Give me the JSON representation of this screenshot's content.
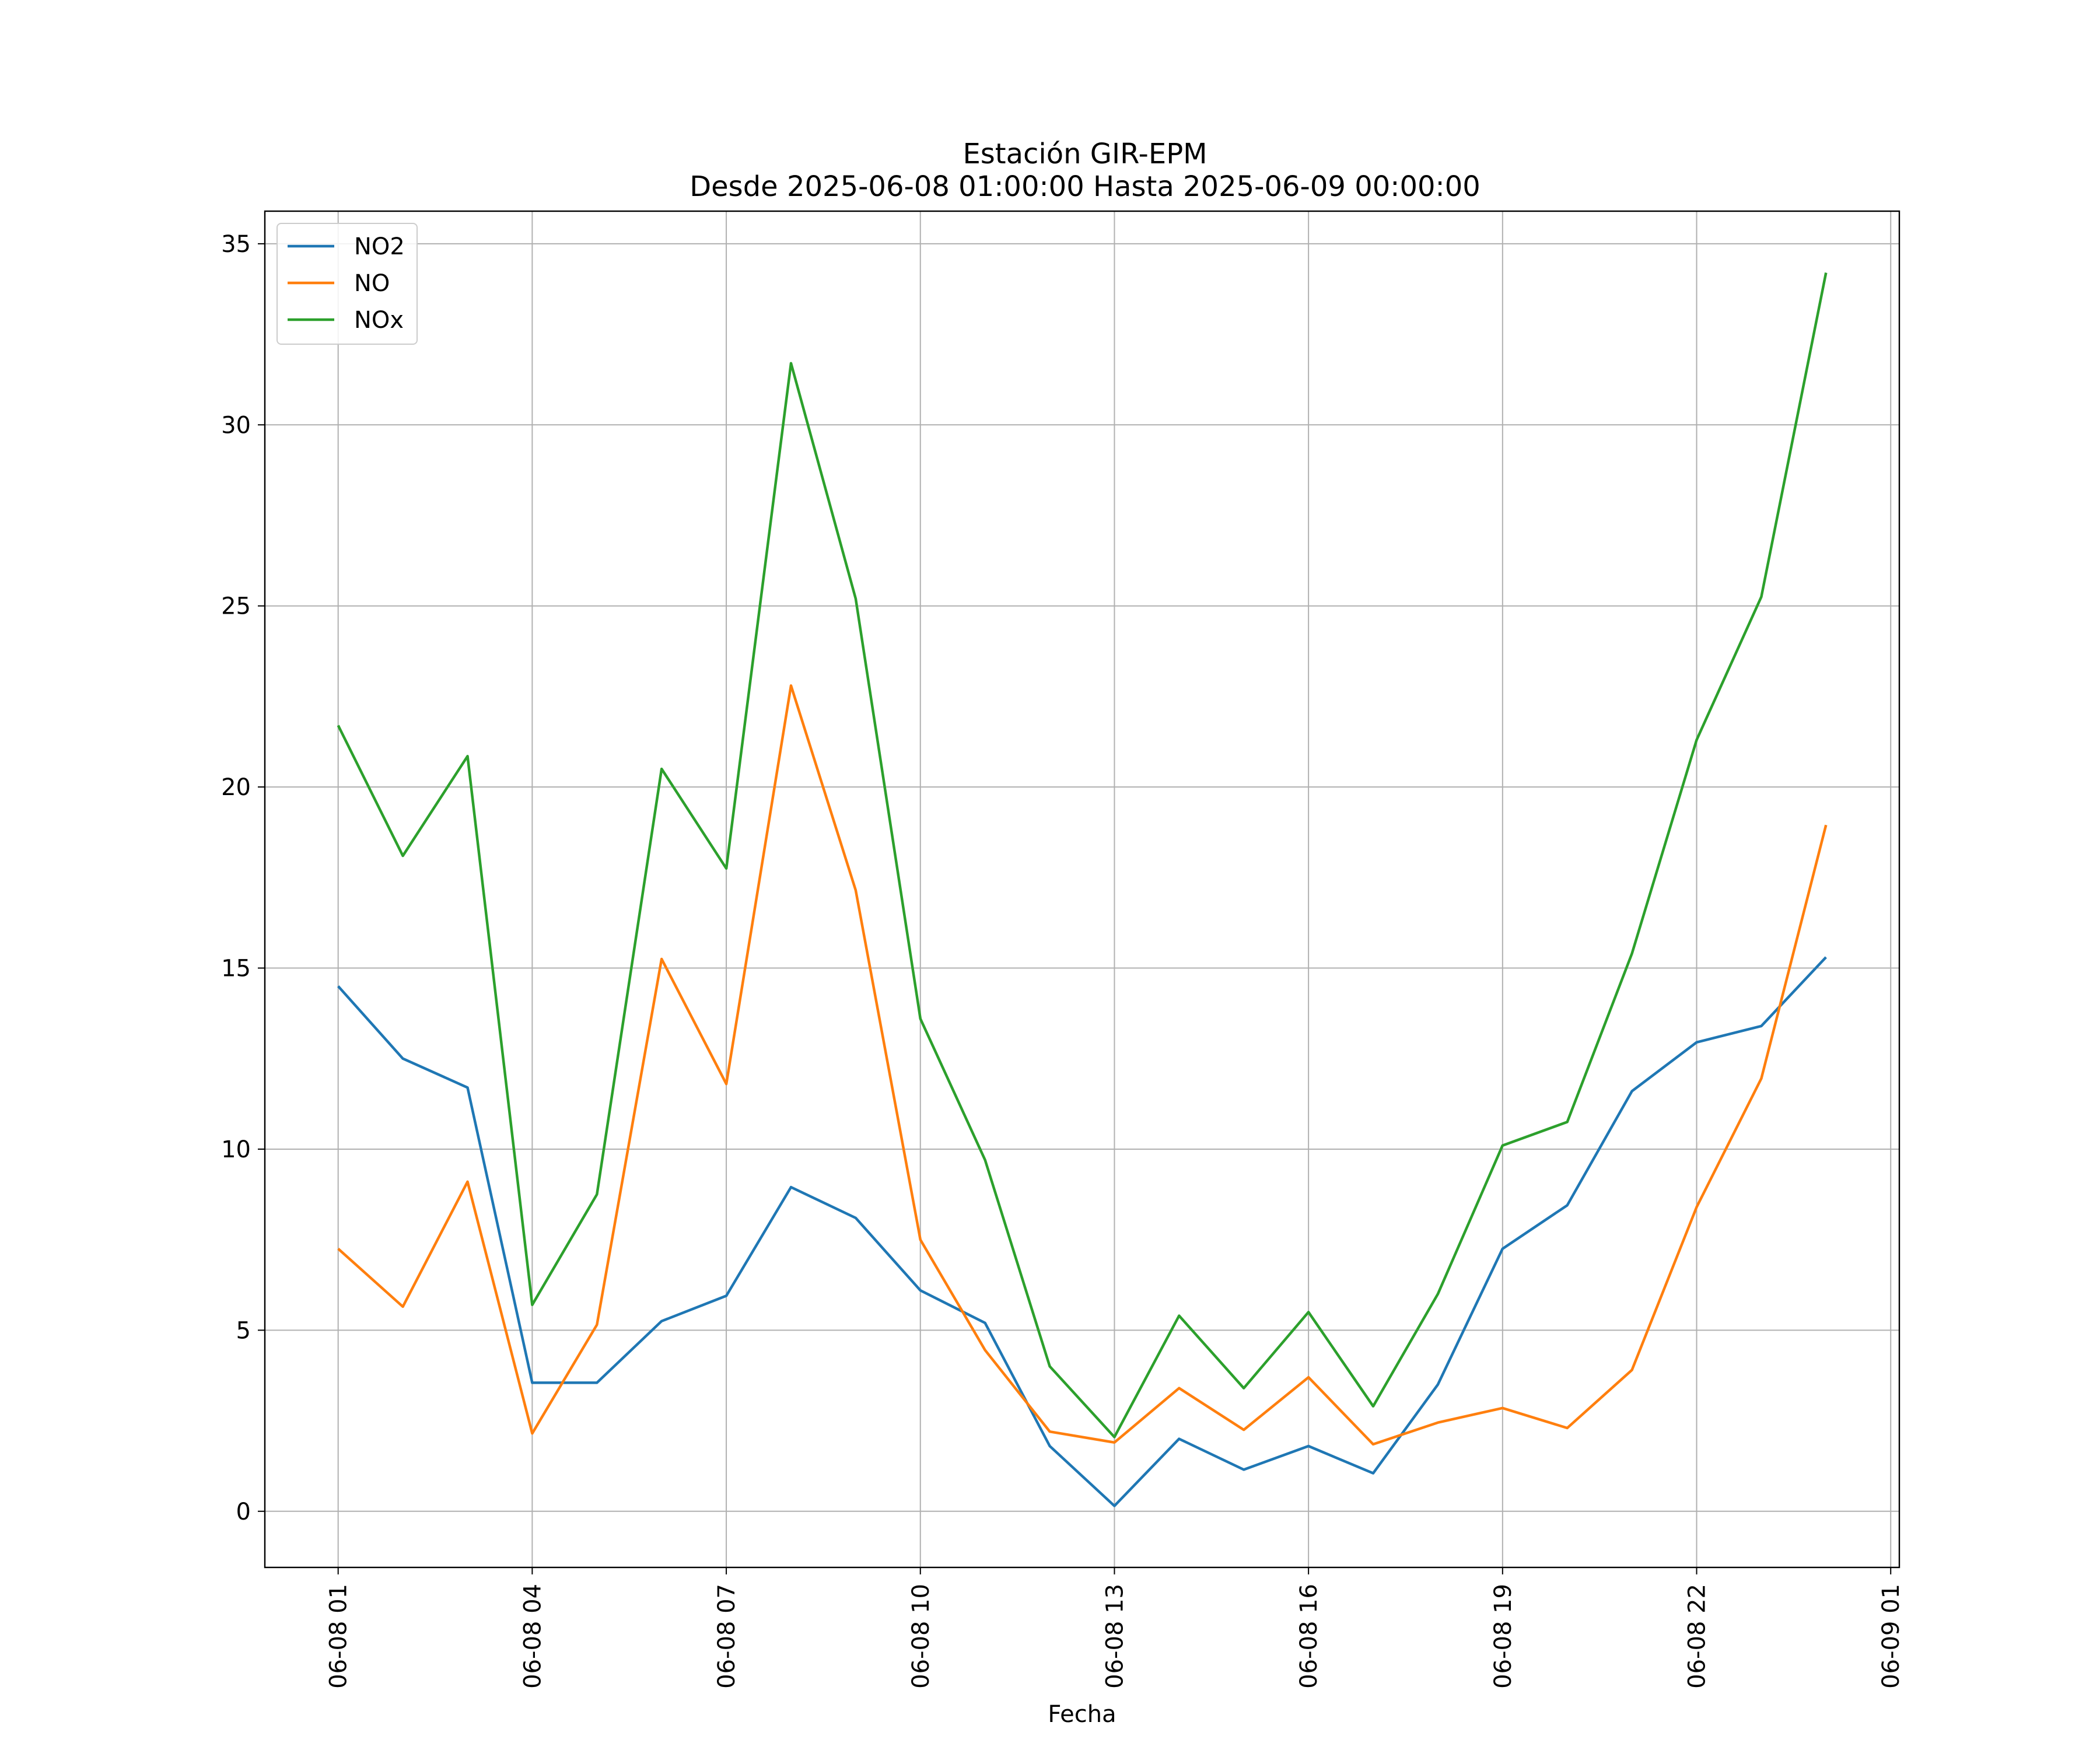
{
  "chart_data": {
    "type": "line",
    "title": "Estación GIR-EPM",
    "subtitle": "Desde 2025-06-08 01:00:00 Hasta 2025-06-09 00:00:00",
    "xlabel": "Fecha",
    "ylabel": "",
    "x": [
      "2025-06-08 01:00",
      "2025-06-08 02:00",
      "2025-06-08 03:00",
      "2025-06-08 04:00",
      "2025-06-08 05:00",
      "2025-06-08 06:00",
      "2025-06-08 07:00",
      "2025-06-08 08:00",
      "2025-06-08 09:00",
      "2025-06-08 10:00",
      "2025-06-08 11:00",
      "2025-06-08 12:00",
      "2025-06-08 13:00",
      "2025-06-08 14:00",
      "2025-06-08 15:00",
      "2025-06-08 16:00",
      "2025-06-08 17:00",
      "2025-06-08 18:00",
      "2025-06-08 19:00",
      "2025-06-08 20:00",
      "2025-06-08 21:00",
      "2025-06-08 22:00",
      "2025-06-08 23:00",
      "2025-06-09 00:00"
    ],
    "xlim": [
      "2025-06-07 23:52",
      "2025-06-09 01:08"
    ],
    "ylim": [
      -1.55,
      35.9
    ],
    "xticks": [
      {
        "value": "2025-06-08 01:00",
        "label": "06-08 01"
      },
      {
        "value": "2025-06-08 04:00",
        "label": "06-08 04"
      },
      {
        "value": "2025-06-08 07:00",
        "label": "06-08 07"
      },
      {
        "value": "2025-06-08 10:00",
        "label": "06-08 10"
      },
      {
        "value": "2025-06-08 13:00",
        "label": "06-08 13"
      },
      {
        "value": "2025-06-08 16:00",
        "label": "06-08 16"
      },
      {
        "value": "2025-06-08 19:00",
        "label": "06-08 19"
      },
      {
        "value": "2025-06-08 22:00",
        "label": "06-08 22"
      },
      {
        "value": "2025-06-09 01:00",
        "label": "06-09 01"
      }
    ],
    "yticks": [
      {
        "value": 0,
        "label": "0"
      },
      {
        "value": 5,
        "label": "5"
      },
      {
        "value": 10,
        "label": "10"
      },
      {
        "value": 15,
        "label": "15"
      },
      {
        "value": 20,
        "label": "20"
      },
      {
        "value": 25,
        "label": "25"
      },
      {
        "value": 30,
        "label": "30"
      },
      {
        "value": 35,
        "label": "35"
      }
    ],
    "grid": true,
    "legend_position": "upper-left",
    "series": [
      {
        "name": "NO2",
        "color": "#1f77b4",
        "values": [
          14.5,
          12.5,
          11.7,
          3.55,
          3.55,
          5.25,
          5.95,
          8.95,
          8.1,
          6.1,
          5.2,
          1.8,
          0.15,
          2.0,
          1.15,
          1.8,
          1.05,
          3.5,
          7.25,
          8.45,
          11.6,
          12.95,
          13.4,
          15.3
        ]
      },
      {
        "name": "NO",
        "color": "#ff7f0e",
        "values": [
          7.25,
          5.65,
          9.1,
          2.15,
          5.15,
          15.25,
          11.8,
          22.8,
          17.15,
          7.5,
          4.45,
          2.2,
          1.9,
          3.4,
          2.25,
          3.7,
          1.85,
          2.45,
          2.85,
          2.3,
          3.9,
          8.4,
          11.95,
          18.95
        ]
      },
      {
        "name": "NOx",
        "color": "#2ca02c",
        "values": [
          21.7,
          18.1,
          20.85,
          5.7,
          8.75,
          20.5,
          17.75,
          31.7,
          25.2,
          13.6,
          9.7,
          4.0,
          2.05,
          5.4,
          3.4,
          5.5,
          2.9,
          6.0,
          10.1,
          10.75,
          15.4,
          21.3,
          25.25,
          34.2
        ]
      }
    ]
  }
}
